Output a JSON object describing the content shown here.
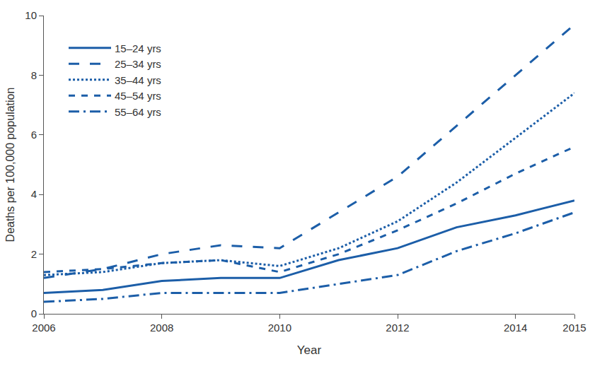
{
  "chart_data": {
    "type": "line",
    "x_label": "Year",
    "y_label": "Deaths per 100,000 population",
    "x": [
      2006,
      2007,
      2008,
      2009,
      2010,
      2011,
      2012,
      2013,
      2014,
      2015
    ],
    "xlim": [
      2006,
      2015
    ],
    "xticks": [
      2006,
      2008,
      2010,
      2012,
      2014,
      2015
    ],
    "ylim": [
      0,
      10
    ],
    "yticks": [
      0,
      2,
      4,
      6,
      8,
      10
    ],
    "grid": false,
    "legend": "upper left",
    "series": [
      {
        "name": "15–24 yrs",
        "color": "#1c5ea8",
        "line_style": "solid",
        "values": [
          0.7,
          0.8,
          1.1,
          1.2,
          1.2,
          1.8,
          2.2,
          2.9,
          3.3,
          3.8
        ]
      },
      {
        "name": "25–34 yrs",
        "color": "#1c5ea8",
        "line_style": "longdash",
        "values": [
          1.2,
          1.5,
          2.0,
          2.3,
          2.2,
          3.4,
          4.6,
          6.3,
          8.0,
          9.7
        ]
      },
      {
        "name": "35–44 yrs",
        "color": "#1c5ea8",
        "line_style": "dot",
        "values": [
          1.3,
          1.4,
          1.7,
          1.8,
          1.6,
          2.2,
          3.1,
          4.4,
          5.9,
          7.4
        ]
      },
      {
        "name": "45–54 yrs",
        "color": "#1c5ea8",
        "line_style": "dash",
        "values": [
          1.4,
          1.5,
          1.7,
          1.8,
          1.4,
          2.0,
          2.8,
          3.7,
          4.7,
          5.6
        ]
      },
      {
        "name": "55–64 yrs",
        "color": "#1c5ea8",
        "line_style": "longdashdot",
        "values": [
          0.4,
          0.5,
          0.7,
          0.7,
          0.7,
          1.0,
          1.3,
          2.1,
          2.7,
          3.4
        ]
      }
    ]
  }
}
